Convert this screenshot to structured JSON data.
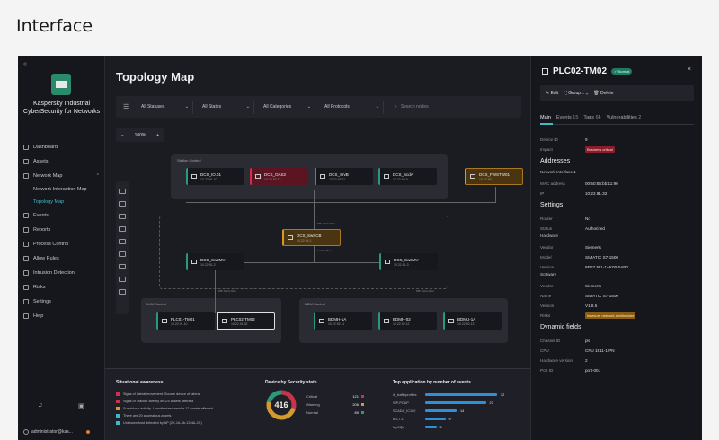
{
  "page_title": "Interface",
  "sidebar": {
    "brand": "Kaspersky Industrial CyberSecurity for Networks",
    "items": [
      {
        "label": "Dashboard"
      },
      {
        "label": "Assets"
      },
      {
        "label": "Network Map"
      },
      {
        "label": "Network Interaction Map"
      },
      {
        "label": "Topology Map"
      },
      {
        "label": "Events"
      },
      {
        "label": "Reports"
      },
      {
        "label": "Process Control"
      },
      {
        "label": "Allow Rules"
      },
      {
        "label": "Intrusion Detection"
      },
      {
        "label": "Risks"
      },
      {
        "label": "Settings"
      },
      {
        "label": "Help"
      }
    ],
    "user": "administrator@kas..."
  },
  "map": {
    "title": "Topology Map",
    "filters": [
      "All Statuses",
      "All States",
      "All Categories",
      "All Protocols"
    ],
    "search_placeholder": "Search nodes",
    "zoom": "100%",
    "zones": {
      "station": "Station Control",
      "ahm": "AHM Control",
      "bdm": "BDM Control"
    },
    "nodes": {
      "dcs_01": {
        "name": "DCS_IO.01",
        "ip": "10.22.91.10"
      },
      "dcs_oas2": {
        "name": "DCS_OAS2",
        "ip": "10.22.92.12"
      },
      "dcs_srv": {
        "name": "DCS_SrvB",
        "ip": "10.22.93.11"
      },
      "dcs_scad": {
        "name": "DCS_ScdA",
        "ip": "10.22.93.9"
      },
      "dcs_fw": {
        "name": "DCS_FWSTW01",
        "ip": "10.22.98.1"
      },
      "dcs_sw": {
        "name": "DCS_SwSCB",
        "ip": "10.22.94.1"
      },
      "dcs_sw2": {
        "name": "DCS_Sw2MV",
        "ip": "10.22.91.2"
      },
      "dcs_sw3": {
        "name": "DCS_Sw3MV",
        "ip": "10.22.91.3"
      },
      "plc01": {
        "name": "PLC01-TM01",
        "ip": "10.22.91.10"
      },
      "plc02": {
        "name": "PLC02-TM02",
        "ip": "10.22.91.32"
      },
      "bdm1": {
        "name": "BDMH-1A",
        "ip": "10.22.92.11"
      },
      "bdm2": {
        "name": "BDMH-02",
        "ip": "10.22.92.12"
      },
      "bdm3": {
        "name": "BDMU-1A",
        "ip": "10.22.92.13"
      }
    },
    "link_labels": [
      "MB 1Gb/s fiber",
      "1 Gb/s fiber",
      "MB 1Gb/s fiber",
      "MB 1Gb/s fiber"
    ]
  },
  "bottom": {
    "situational_title": "Situational awareness",
    "situational_items": [
      {
        "text": "Signs of lateral movement. Source device of lateral",
        "color": "#c8324a"
      },
      {
        "text": "Signs of Tracker activity on 2/4 assets affected",
        "color": "#c8324a"
      },
      {
        "text": "Suspicious activity. Unauthorized sender 12 assets affected",
        "color": "#d49a30"
      },
      {
        "text": "There are 20 anomalous assets",
        "color": "#3fb8c8"
      },
      {
        "text": "Unknown host detected by AP (2X-1A-5b-13-4A-2C)",
        "color": "#3fb8c8"
      }
    ],
    "security_title": "Device by Security state",
    "security_total": "416",
    "security_rows": [
      {
        "label": "Critical",
        "value": "121",
        "color": "#c8324a"
      },
      {
        "label": "Warning",
        "value": "206",
        "color": "#d49a30"
      },
      {
        "label": "Normal",
        "value": "89",
        "color": "#2a9a7a"
      }
    ],
    "apps_title": "Top application by number of events",
    "apps": [
      {
        "name": "ib_trafficprofiles",
        "value": 32
      },
      {
        "name": "SIP-PCAP",
        "value": 27
      },
      {
        "name": "SCADA_IC100",
        "value": 14
      },
      {
        "name": "IEC7-1",
        "value": 9
      },
      {
        "name": "MySQL",
        "value": 5
      }
    ]
  },
  "panel": {
    "title": "PLC02-TM02",
    "status_badge": "✓ Normal",
    "actions": [
      "Edit",
      "Group...",
      "Delete"
    ],
    "tabs": [
      {
        "label": "Main",
        "count": ""
      },
      {
        "label": "Events",
        "count": "15"
      },
      {
        "label": "Tags",
        "count": "64"
      },
      {
        "label": "Vulnerabilities",
        "count": "2"
      }
    ],
    "device_id_k": "Device ID",
    "device_id_v": "9",
    "impact_k": "Impact",
    "impact_v": "Business critical",
    "addresses_title": "Addresses",
    "iface_title": "Network Interface 1",
    "mac_k": "MAC address",
    "mac_v": "00:50:56:bb:11:90",
    "ip_k": "IP",
    "ip_v": "10.22.91.32",
    "settings_title": "Settings",
    "router_k": "Router",
    "router_v": "No",
    "status_k": "Status",
    "status_v": "Authorized",
    "hardware_title": "Hardware",
    "hw_vendor_k": "Vendor",
    "hw_vendor_v": "Siemens",
    "hw_model_k": "Model",
    "hw_model_v": "SIMATIC S7-1500",
    "hw_version_k": "Version",
    "hw_version_v": "6ES7 511-1AK00-0AB0",
    "software_title": "Software",
    "sw_vendor_k": "Vendor",
    "sw_vendor_v": "Siemens",
    "sw_name_k": "Name",
    "sw_name_v": "SIMATIC S7-1500",
    "sw_version_k": "Version",
    "sw_version_v": "V1.8.5",
    "risks_k": "Risks",
    "risks_v": "Insecure network architecture",
    "dynamic_title": "Dynamic fields",
    "chassis_k": "Chassis ID",
    "chassis_v": "plc",
    "cpu_k": "CPU",
    "cpu_v": "CPU 1511-1 PN",
    "hwver_k": "Hardware version",
    "hwver_v": "2",
    "port_k": "Port ID",
    "port_v": "port-001"
  }
}
